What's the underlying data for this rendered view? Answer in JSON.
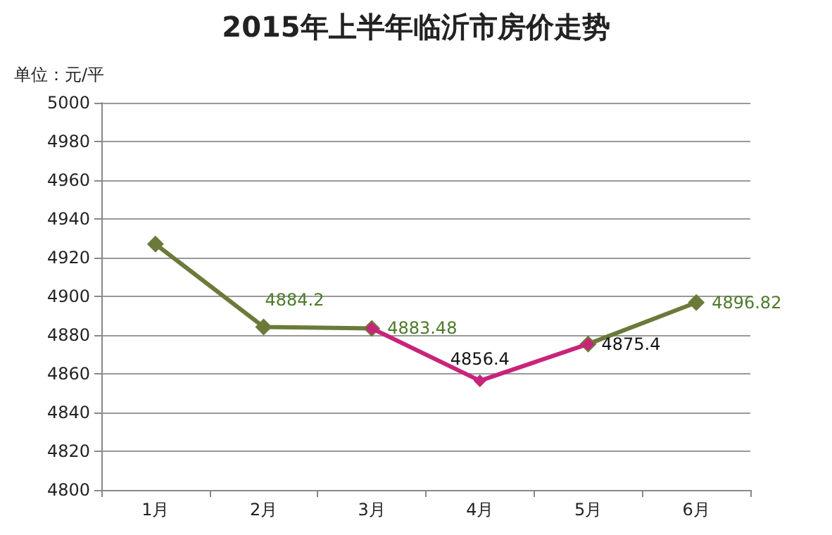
{
  "chart_data": {
    "type": "line",
    "title": "2015年上半年临沂市房价走势",
    "ylabel": "单位：元/平",
    "categories": [
      "1月",
      "2月",
      "3月",
      "4月",
      "5月",
      "6月"
    ],
    "series": [
      {
        "color": "#6b7a3a",
        "values": [
          4927,
          4884.2,
          4883.48,
          null,
          4875.4,
          4896.82
        ],
        "value_labels": [
          null,
          "4884.2",
          "4883.48",
          null,
          null,
          "4896.82"
        ]
      },
      {
        "color": "#c8247a",
        "values": [
          null,
          null,
          4883.48,
          4856.4,
          4875.4,
          null
        ],
        "value_labels": [
          null,
          null,
          null,
          "4856.4",
          "4875.4",
          null
        ]
      }
    ],
    "ylim": [
      4800,
      5000
    ],
    "yticks": [
      4800,
      4820,
      4840,
      4860,
      4880,
      4900,
      4920,
      4940,
      4960,
      4980,
      5000
    ],
    "grid": "y",
    "marker": "diamond",
    "line_style": "solid"
  }
}
